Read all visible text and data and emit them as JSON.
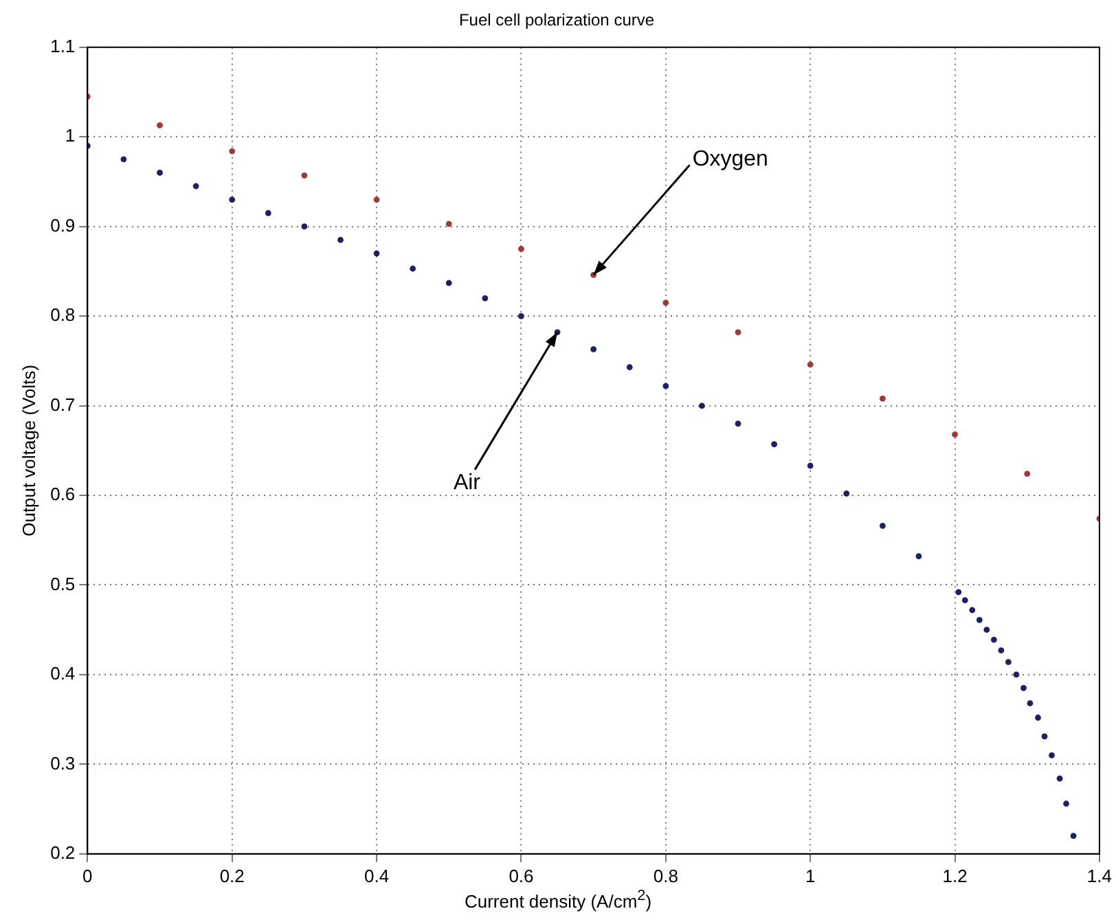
{
  "chart_data": {
    "type": "scatter",
    "title": "Fuel cell polarization curve",
    "xlabel": "Current density (A/cm$^{2}$)",
    "ylabel": "Output voltage (Volts)",
    "xlim": [
      0,
      1.4
    ],
    "xticks": [
      0,
      0.2,
      0.4,
      0.6,
      0.8,
      1,
      1.2,
      1.4
    ],
    "ylim": [
      0.2,
      1.1
    ],
    "yticks": [
      0.2,
      0.3,
      0.4,
      0.5,
      0.6,
      0.7,
      0.8,
      0.9,
      1,
      1.1
    ],
    "grid": true,
    "marker": "circle",
    "legend": false,
    "series": [
      {
        "color": "#a03a3a",
        "x": [
          0,
          0.1,
          0.2,
          0.3,
          0.4,
          0.5,
          0.6,
          0.7,
          0.8,
          0.9,
          1,
          1.1,
          1.2,
          1.3,
          1.4
        ],
        "values": [
          1.045,
          1.013,
          0.984,
          0.957,
          0.93,
          0.903,
          0.875,
          0.846,
          0.815,
          0.782,
          0.746,
          0.708,
          0.668,
          0.624,
          0.574
        ]
      },
      {
        "color": "#1e2060",
        "x": [
          0,
          0.05,
          0.1,
          0.15,
          0.2,
          0.25,
          0.3,
          0.35,
          0.4,
          0.45,
          0.5,
          0.55,
          0.6,
          0.65,
          0.7,
          0.75,
          0.8,
          0.85,
          0.9,
          0.95,
          1,
          1.05,
          1.1,
          1.15,
          1.205,
          1.214,
          1.224,
          1.234,
          1.244,
          1.254,
          1.264,
          1.274,
          1.285,
          1.295,
          1.304,
          1.315,
          1.324,
          1.334,
          1.345,
          1.354,
          1.364
        ],
        "values": [
          0.99,
          0.975,
          0.96,
          0.945,
          0.93,
          0.915,
          0.9,
          0.885,
          0.87,
          0.853,
          0.837,
          0.82,
          0.8,
          0.782,
          0.763,
          0.743,
          0.722,
          0.7,
          0.68,
          0.657,
          0.633,
          0.602,
          0.566,
          0.532,
          0.492,
          0.483,
          0.472,
          0.461,
          0.45,
          0.439,
          0.427,
          0.414,
          0.4,
          0.385,
          0.368,
          0.352,
          0.331,
          0.31,
          0.284,
          0.256,
          0.22
        ]
      }
    ],
    "annotations": [
      {
        "text": "Oxygen",
        "x": 0.7,
        "y": 0.846
      },
      {
        "text": "Air",
        "x": 0.65,
        "y": 0.782
      }
    ]
  }
}
